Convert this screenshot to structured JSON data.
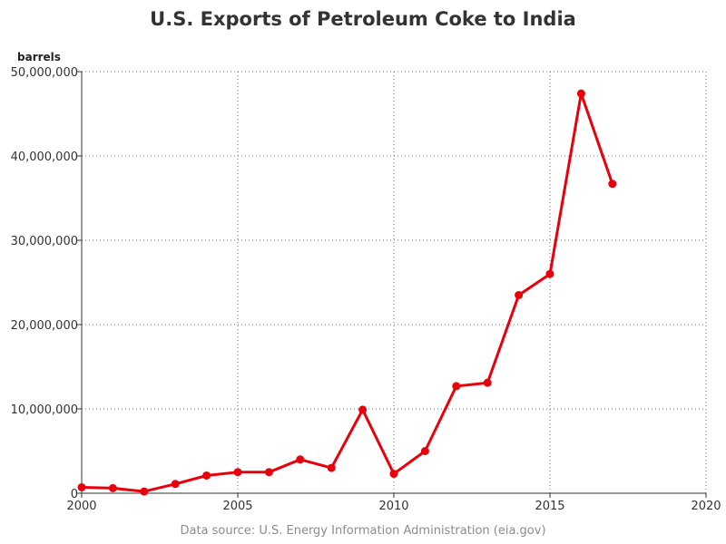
{
  "chart_data": {
    "type": "line",
    "title": "U.S. Exports of Petroleum Coke to India",
    "ylabel": "barrels",
    "xlabel": "",
    "source": "Data source: U.S. Energy Information Administration (eia.gov)",
    "xlim": [
      2000,
      2020
    ],
    "ylim": [
      0,
      50000000
    ],
    "xticks": [
      "2000",
      "2005",
      "2010",
      "2015",
      "2020"
    ],
    "yticks": [
      "0",
      "10,000,000",
      "20,000,000",
      "30,000,000",
      "40,000,000",
      "50,000,000"
    ],
    "xtick_values": [
      2000,
      2005,
      2010,
      2015,
      2020
    ],
    "ytick_values": [
      0,
      10000000,
      20000000,
      30000000,
      40000000,
      50000000
    ],
    "grid": true,
    "series": [
      {
        "color": "#e8000b",
        "x": [
          2000,
          2001,
          2002,
          2003,
          2004,
          2005,
          2006,
          2007,
          2008,
          2009,
          2010,
          2011,
          2012,
          2013,
          2014,
          2015,
          2016,
          2017
        ],
        "y": [
          700000,
          600000,
          200000,
          1100000,
          2100000,
          2500000,
          2500000,
          4000000,
          3000000,
          9900000,
          2300000,
          5000000,
          12700000,
          13100000,
          23500000,
          26000000,
          47400000,
          36700000
        ]
      }
    ]
  }
}
